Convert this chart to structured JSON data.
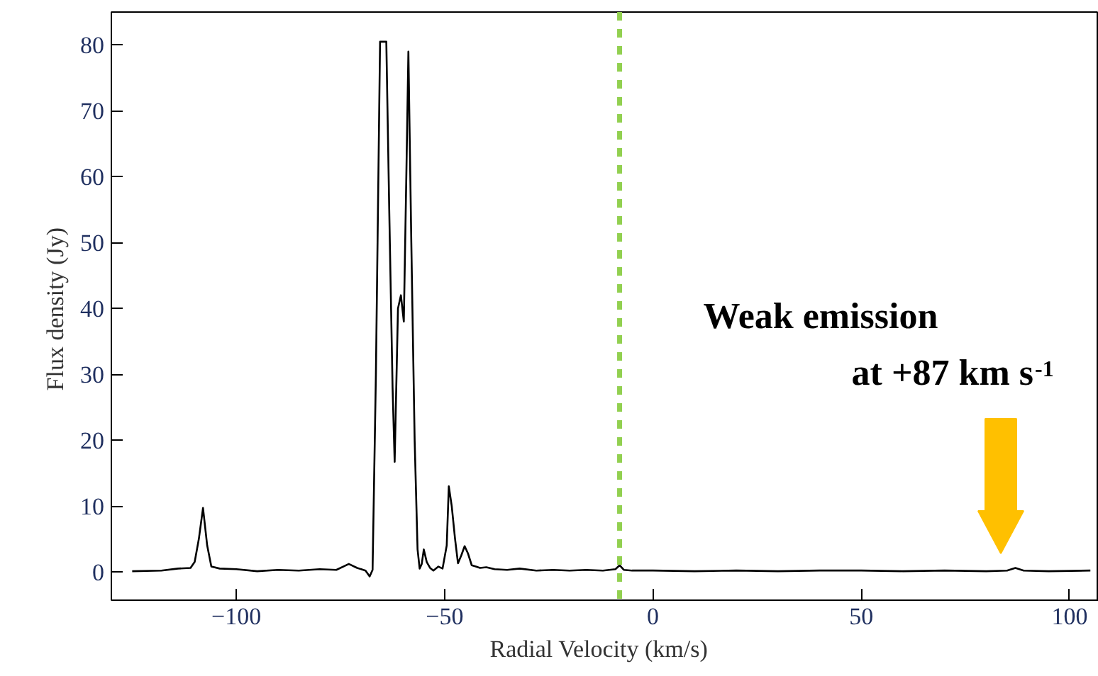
{
  "chart_data": {
    "type": "line",
    "xlabel": "Radial Velocity   (km/s)",
    "ylabel": "Flux density  (Jy)",
    "xlim": [
      -130,
      107
    ],
    "ylim": [
      -4.3,
      85
    ],
    "xticks": [
      -100,
      -50,
      0,
      50,
      100
    ],
    "yticks": [
      0,
      10,
      20,
      30,
      40,
      50,
      60,
      70,
      80
    ],
    "grid": false,
    "marker": "none",
    "line_style": "solid",
    "series": [
      {
        "color": "#000000",
        "x": [
          -125,
          -118,
          -114,
          -111,
          -110,
          -109,
          -108,
          -107,
          -106,
          -104,
          -100,
          -95,
          -90,
          -85,
          -80,
          -76,
          -73,
          -71,
          -69,
          -68,
          -67.3,
          -66.5,
          -65.5,
          -64,
          -63.3,
          -62.5,
          -62,
          -61.2,
          -60.5,
          -59.8,
          -59.2,
          -58.7,
          -58,
          -57.2,
          -56.5,
          -56,
          -55.5,
          -55,
          -54.3,
          -53.5,
          -52.7,
          -51.5,
          -50.5,
          -49.5,
          -49,
          -48.3,
          -47.5,
          -46.8,
          -46,
          -45.2,
          -44.4,
          -43.5,
          -42.5,
          -41.5,
          -40,
          -38,
          -35,
          -32,
          -28,
          -24,
          -20,
          -16,
          -12,
          -9,
          -8,
          -7,
          -5,
          0,
          10,
          20,
          30,
          40,
          50,
          60,
          70,
          80,
          85,
          87,
          89,
          95,
          105
        ],
        "values": [
          0.1,
          0.2,
          0.5,
          0.6,
          1.5,
          5,
          9.7,
          4,
          0.8,
          0.5,
          0.4,
          0.1,
          0.3,
          0.2,
          0.4,
          0.3,
          1.2,
          0.6,
          0.2,
          -0.7,
          0.3,
          30,
          80.5,
          80.5,
          55,
          28,
          16.7,
          40,
          42,
          38,
          60,
          79,
          50,
          20,
          3.4,
          0.5,
          1.2,
          3.4,
          1.5,
          0.6,
          0.2,
          0.8,
          0.5,
          4,
          13,
          10,
          5,
          1.3,
          2.5,
          3.9,
          2.8,
          1,
          0.8,
          0.6,
          0.7,
          0.4,
          0.3,
          0.5,
          0.2,
          0.3,
          0.2,
          0.3,
          0.2,
          0.4,
          1,
          0.3,
          0.2,
          0.2,
          0.1,
          0.2,
          0.1,
          0.2,
          0.2,
          0.1,
          0.2,
          0.1,
          0.2,
          0.6,
          0.2,
          0.1,
          0.2
        ]
      }
    ],
    "ref_lines": [
      {
        "axis": "x",
        "value": -8,
        "label": null,
        "color": "#92d050",
        "line_style": "dashed"
      }
    ],
    "annotations": [
      "Weak emission\nat +87 km s$^{-1}$"
    ]
  }
}
